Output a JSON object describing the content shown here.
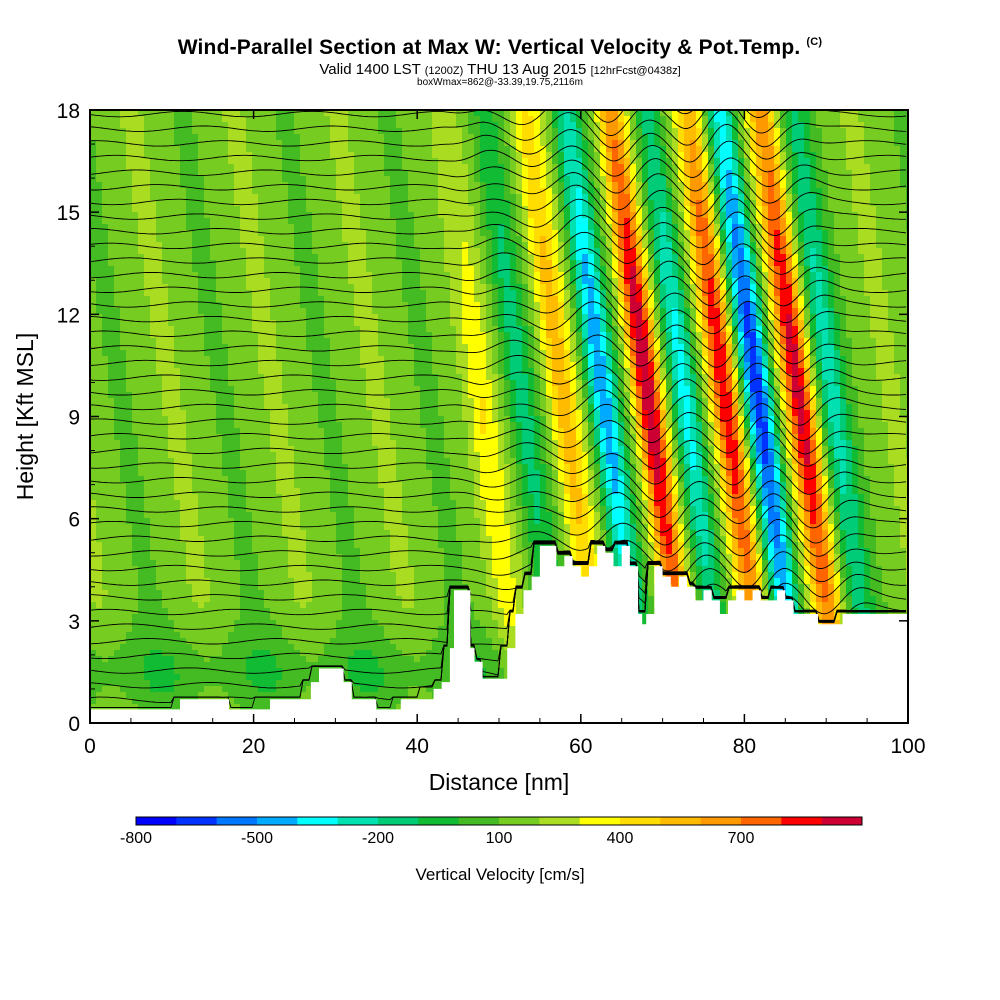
{
  "header": {
    "title": "Wind-Parallel Section at Max W: Vertical Velocity & Pot.Temp.",
    "title_mark": "(C)",
    "subtitle_a": "Valid 1400 LST",
    "subtitle_b": "(1200Z)",
    "subtitle_c": "THU 13 Aug 2015",
    "subtitle_d": "[12hrFcst@0438z]",
    "subsubtitle": "boxWmax=862@-33.39,19.75,2116m"
  },
  "chart_data": {
    "type": "heatmap",
    "title": "Wind-Parallel Section at Max W: Vertical Velocity & Pot.Temp.",
    "xlabel": "Distance [nm]",
    "ylabel": "Height [Kft MSL]",
    "xlim": [
      0,
      100
    ],
    "ylim": [
      0,
      18
    ],
    "x_ticks": [
      0,
      20,
      40,
      60,
      80,
      100
    ],
    "y_ticks": [
      0,
      3,
      6,
      9,
      12,
      15,
      18
    ],
    "colorbar": {
      "title": "Vertical Velocity [cm/s]",
      "labels": [
        "-800",
        "-500",
        "-200",
        "100",
        "400",
        "700"
      ],
      "label_values": [
        -800,
        -500,
        -200,
        100,
        400,
        700
      ],
      "min": -800,
      "max": 900,
      "step": 100,
      "colors": [
        "#0000ff",
        "#0033ff",
        "#0077ff",
        "#00aaff",
        "#00ffff",
        "#00e0b0",
        "#00cc77",
        "#11bb33",
        "#44bb22",
        "#77cc22",
        "#aadd22",
        "#ffff00",
        "#ffdd00",
        "#ffbb00",
        "#ff9900",
        "#ff6600",
        "#ff0000",
        "#cc0033"
      ]
    },
    "terrain_nm_kft": [
      [
        0,
        0.4
      ],
      [
        3,
        0.4
      ],
      [
        8,
        0.4
      ],
      [
        10,
        0.4
      ],
      [
        11,
        0.7
      ],
      [
        14,
        0.7
      ],
      [
        16,
        0.7
      ],
      [
        17,
        0.4
      ],
      [
        20,
        0.4
      ],
      [
        22,
        0.7
      ],
      [
        26,
        0.7
      ],
      [
        27,
        1.2
      ],
      [
        28,
        1.6
      ],
      [
        30,
        1.6
      ],
      [
        31,
        1.2
      ],
      [
        32,
        0.7
      ],
      [
        34,
        0.7
      ],
      [
        35,
        0.4
      ],
      [
        37,
        0.4
      ],
      [
        38,
        0.7
      ],
      [
        40,
        0.7
      ],
      [
        42,
        1.0
      ],
      [
        43,
        1.2
      ],
      [
        44,
        2.2
      ],
      [
        44.5,
        3.9
      ],
      [
        46,
        3.9
      ],
      [
        46.5,
        2.2
      ],
      [
        47,
        1.8
      ],
      [
        48,
        1.3
      ],
      [
        50,
        1.3
      ],
      [
        51,
        2.2
      ],
      [
        52,
        3.2
      ],
      [
        53,
        3.9
      ],
      [
        54,
        4.3
      ],
      [
        55,
        5.2
      ],
      [
        56,
        5.2
      ],
      [
        57,
        4.6
      ],
      [
        58,
        4.9
      ],
      [
        59,
        4.6
      ],
      [
        60,
        4.3
      ],
      [
        61,
        4.6
      ],
      [
        62,
        5.2
      ],
      [
        63,
        5.0
      ],
      [
        64,
        4.6
      ],
      [
        65,
        5.2
      ],
      [
        66,
        4.6
      ],
      [
        67,
        3.2
      ],
      [
        67.5,
        2.9
      ],
      [
        68,
        3.2
      ],
      [
        69,
        4.6
      ],
      [
        70,
        4.3
      ],
      [
        71,
        4.0
      ],
      [
        72,
        4.3
      ],
      [
        73,
        4.0
      ],
      [
        74,
        3.6
      ],
      [
        75,
        3.9
      ],
      [
        76,
        3.6
      ],
      [
        77,
        3.2
      ],
      [
        78,
        3.6
      ],
      [
        79,
        3.9
      ],
      [
        80,
        3.6
      ],
      [
        81,
        3.9
      ],
      [
        82,
        3.6
      ],
      [
        83,
        3.6
      ],
      [
        84,
        3.9
      ],
      [
        85,
        3.6
      ],
      [
        86,
        3.2
      ],
      [
        88,
        3.2
      ],
      [
        89,
        2.9
      ],
      [
        91,
        2.9
      ],
      [
        92,
        3.2
      ],
      [
        100,
        3.2
      ]
    ],
    "waves": [
      {
        "kind": "up",
        "x_nm": 48,
        "peak_cm_s": 200
      },
      {
        "kind": "down",
        "x_nm": 53,
        "peak_cm_s": -250
      },
      {
        "kind": "up",
        "x_nm": 58,
        "peak_cm_s": 400
      },
      {
        "kind": "down",
        "x_nm": 63,
        "peak_cm_s": -650
      },
      {
        "kind": "up",
        "x_nm": 68.5,
        "peak_cm_s": 900
      },
      {
        "kind": "down",
        "x_nm": 73,
        "peak_cm_s": -550
      },
      {
        "kind": "up",
        "x_nm": 78,
        "peak_cm_s": 800
      },
      {
        "kind": "down",
        "x_nm": 82,
        "peak_cm_s": -800
      },
      {
        "kind": "up",
        "x_nm": 87,
        "peak_cm_s": 750
      },
      {
        "kind": "down",
        "x_nm": 91,
        "peak_cm_s": -350
      }
    ],
    "theta_contour_interval_C": 1
  }
}
